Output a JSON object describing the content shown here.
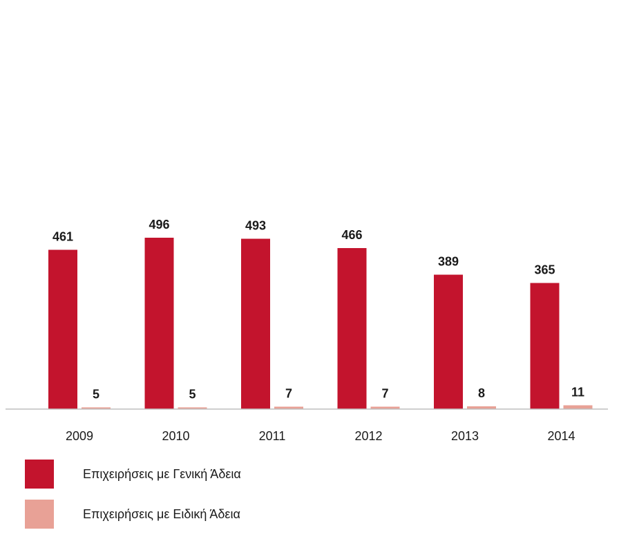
{
  "chart_data": {
    "type": "bar",
    "categories": [
      "2009",
      "2010",
      "2011",
      "2012",
      "2013",
      "2014"
    ],
    "series": [
      {
        "name": "Επιχειρήσεις με Γενική Άδεια",
        "color": "#c3142d",
        "values": [
          461,
          496,
          493,
          466,
          389,
          365
        ]
      },
      {
        "name": "Επιχειρήσεις με Ειδική Άδεια",
        "color": "#e8a196",
        "values": [
          5,
          5,
          7,
          7,
          8,
          11
        ]
      }
    ],
    "ylim": [
      0,
      520
    ],
    "grid": false,
    "legend_position": "bottom-left",
    "data_labels": true
  }
}
